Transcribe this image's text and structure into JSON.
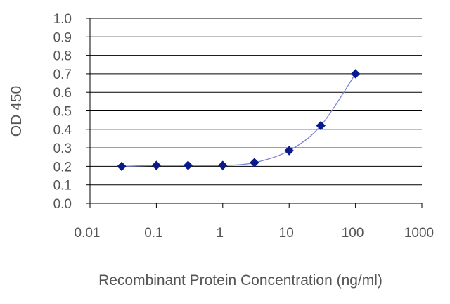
{
  "chart_data": {
    "type": "line",
    "title": "",
    "xlabel": "Recombinant Protein Concentration (ng/ml)",
    "ylabel": "OD 450",
    "x_scale": "log",
    "xlim": [
      0.01,
      1000
    ],
    "ylim": [
      0.0,
      1.0
    ],
    "x_ticks": [
      0.01,
      0.1,
      1,
      10,
      100,
      1000
    ],
    "x_tick_labels": [
      "0.01",
      "0.1",
      "1",
      "10",
      "100",
      "1000"
    ],
    "y_ticks": [
      0.0,
      0.1,
      0.2,
      0.3,
      0.4,
      0.5,
      0.6,
      0.7,
      0.8,
      0.9,
      1.0
    ],
    "y_tick_labels": [
      "0.0",
      "0.1",
      "0.2",
      "0.3",
      "0.4",
      "0.5",
      "0.6",
      "0.7",
      "0.8",
      "0.9",
      "1.0"
    ],
    "grid": "horizontal",
    "legend": "none",
    "line_color": "#7b84d8",
    "marker_color": "#0a1a8c",
    "gridline_color": "#000000",
    "series": [
      {
        "x": [
          0.03,
          0.1,
          0.3,
          1,
          3,
          10,
          30,
          100
        ],
        "y": [
          0.2,
          0.205,
          0.205,
          0.205,
          0.22,
          0.285,
          0.42,
          0.7
        ]
      }
    ]
  }
}
